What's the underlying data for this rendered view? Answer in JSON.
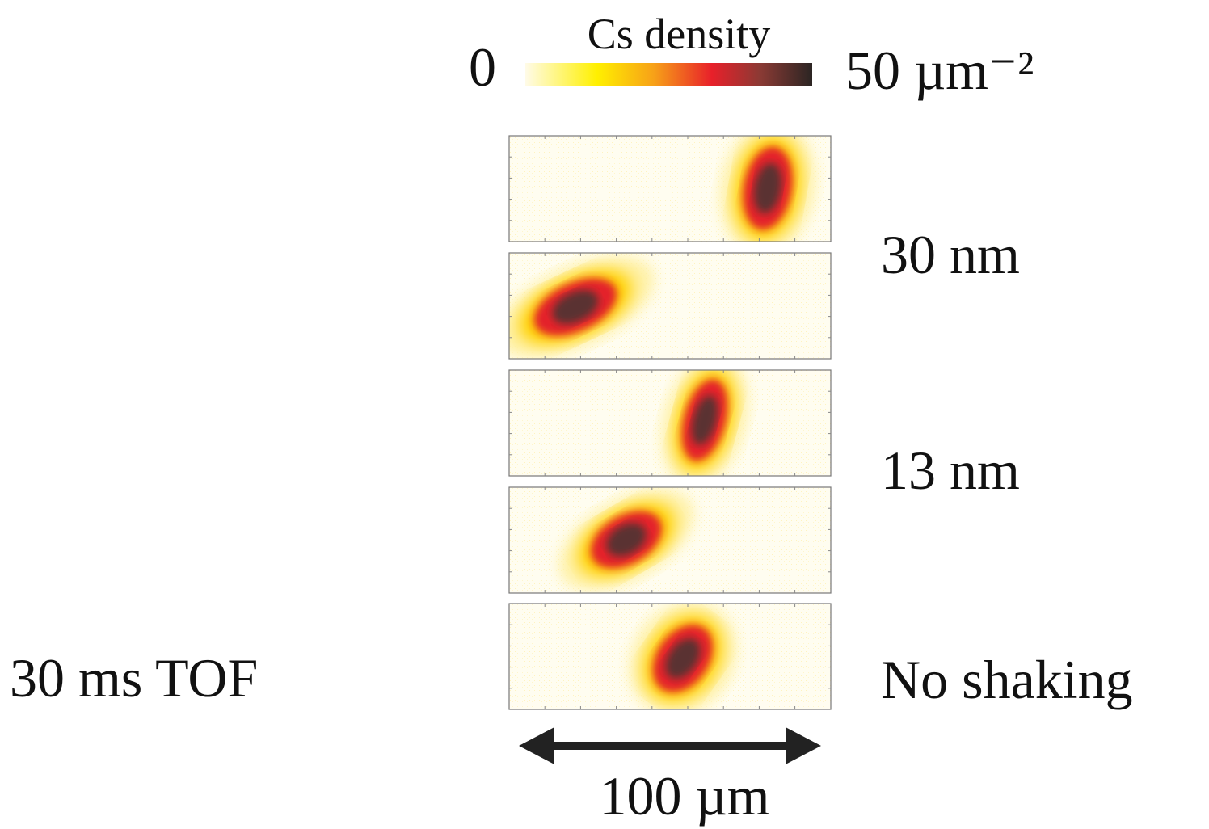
{
  "colorbar": {
    "title": "Cs density",
    "min_label": "0",
    "max_label": "50 µm⁻²"
  },
  "panel_labels": [
    "30 nm",
    "13 nm",
    "No shaking"
  ],
  "left_label": "30 ms TOF",
  "scale_bar": "100 µm"
}
